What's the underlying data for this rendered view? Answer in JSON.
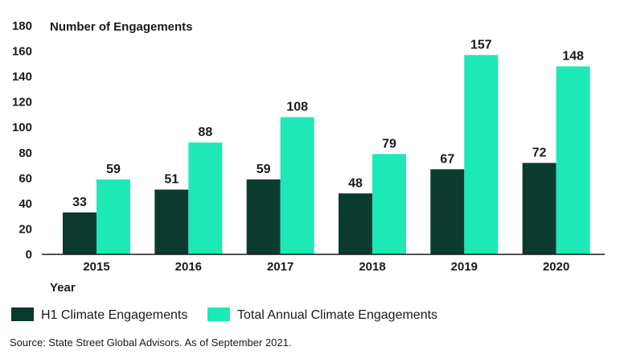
{
  "chart_data": {
    "type": "bar",
    "title": "",
    "ylabel": "Number of Engagements",
    "xlabel": "Year",
    "ylim": [
      0,
      180
    ],
    "yticks": [
      0,
      20,
      40,
      60,
      80,
      100,
      120,
      140,
      160,
      180
    ],
    "categories": [
      "2015",
      "2016",
      "2017",
      "2018",
      "2019",
      "2020"
    ],
    "series": [
      {
        "name": "H1 Climate Engagements",
        "color": "#0b3b2e",
        "values": [
          33,
          51,
          59,
          48,
          67,
          72
        ]
      },
      {
        "name": "Total Annual Climate Engagements",
        "color": "#1de9b6",
        "values": [
          59,
          88,
          108,
          79,
          157,
          148
        ]
      }
    ],
    "grid": false,
    "legend_position": "bottom-left"
  },
  "source_note": "Source: State Street Global Advisors. As of September 2021."
}
